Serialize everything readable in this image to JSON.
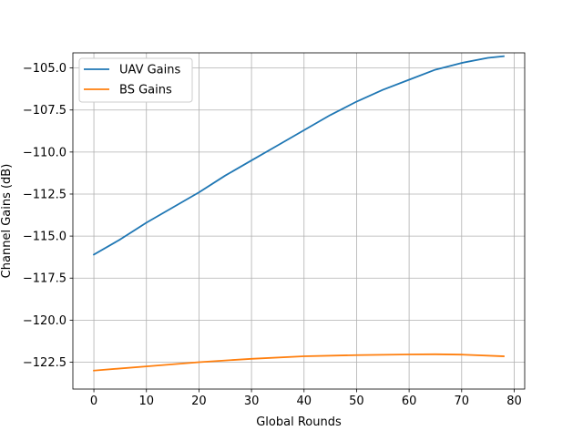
{
  "chart_data": {
    "type": "line",
    "title": "",
    "xlabel": "Global Rounds",
    "ylabel": "Channel Gains (dB)",
    "xlim": [
      -4,
      82
    ],
    "ylim": [
      -124.1,
      -104.1
    ],
    "xticks": [
      0,
      10,
      20,
      30,
      40,
      50,
      60,
      70,
      80
    ],
    "yticks": [
      -122.5,
      -120.0,
      -117.5,
      -115.0,
      -112.5,
      -110.0,
      -107.5,
      -105.0
    ],
    "xtick_labels": [
      "0",
      "10",
      "20",
      "30",
      "40",
      "50",
      "60",
      "70",
      "80"
    ],
    "ytick_labels": [
      "−122.5",
      "−120.0",
      "−117.5",
      "−115.0",
      "−112.5",
      "−110.0",
      "−107.5",
      "−105.0"
    ],
    "grid": true,
    "legend_position": "upper-left",
    "series": [
      {
        "name": "UAV Gains",
        "color": "#1f77b4",
        "x": [
          0,
          5,
          10,
          15,
          20,
          25,
          30,
          35,
          40,
          45,
          50,
          55,
          60,
          65,
          70,
          75,
          78
        ],
        "y": [
          -116.1,
          -115.2,
          -114.2,
          -113.3,
          -112.4,
          -111.4,
          -110.5,
          -109.6,
          -108.7,
          -107.8,
          -107.0,
          -106.3,
          -105.7,
          -105.1,
          -104.7,
          -104.4,
          -104.3
        ]
      },
      {
        "name": "BS Gains",
        "color": "#ff7f0e",
        "x": [
          0,
          10,
          20,
          30,
          40,
          50,
          60,
          65,
          70,
          78
        ],
        "y": [
          -123.0,
          -122.75,
          -122.5,
          -122.3,
          -122.15,
          -122.08,
          -122.04,
          -122.03,
          -122.05,
          -122.15
        ]
      }
    ]
  }
}
